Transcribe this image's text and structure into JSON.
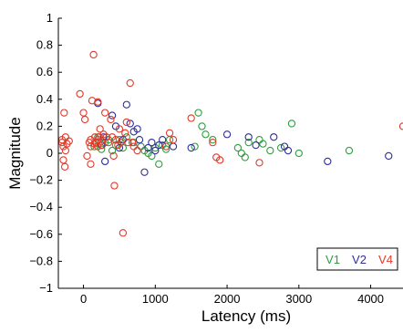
{
  "chart_data": {
    "type": "scatter",
    "title": "",
    "xlabel": "Latency (ms)",
    "ylabel": "Magnitude",
    "xlim": [
      -350,
      4450
    ],
    "ylim": [
      -1,
      1
    ],
    "xticks": [
      0,
      1000,
      2000,
      3000,
      4000
    ],
    "xtick_labels": [
      "0",
      "1000",
      "2000",
      "3000",
      "4000"
    ],
    "yticks": [
      -1,
      -0.8,
      -0.6,
      -0.4,
      -0.2,
      0,
      0.2,
      0.4,
      0.6,
      0.8,
      1
    ],
    "ytick_labels": [
      "−1",
      "−0.8",
      "−0.6",
      "−0.4",
      "−0.2",
      "0",
      "0.2",
      "0.4",
      "0.6",
      "0.8",
      "1"
    ],
    "grid": false,
    "legend_position": "bottom-right",
    "series": [
      {
        "name": "V1",
        "color": "#2e9e3e",
        "points": [
          [
            150,
            0.05
          ],
          [
            200,
            0.12
          ],
          [
            250,
            0.03
          ],
          [
            300,
            0.08
          ],
          [
            350,
            0.1
          ],
          [
            400,
            0.02
          ],
          [
            450,
            0.06
          ],
          [
            500,
            0.1
          ],
          [
            550,
            0.04
          ],
          [
            600,
            0.12
          ],
          [
            700,
            0.08
          ],
          [
            800,
            0.05
          ],
          [
            850,
            0.02
          ],
          [
            900,
            0.0
          ],
          [
            950,
            -0.02
          ],
          [
            1000,
            0.04
          ],
          [
            1050,
            -0.08
          ],
          [
            1100,
            0.06
          ],
          [
            1150,
            0.03
          ],
          [
            1200,
            0.1
          ],
          [
            1550,
            0.05
          ],
          [
            1600,
            0.3
          ],
          [
            1650,
            0.2
          ],
          [
            1700,
            0.14
          ],
          [
            1800,
            0.1
          ],
          [
            2150,
            0.04
          ],
          [
            2200,
            0.0
          ],
          [
            2250,
            -0.03
          ],
          [
            2300,
            0.08
          ],
          [
            2450,
            0.1
          ],
          [
            2500,
            0.07
          ],
          [
            2600,
            0.02
          ],
          [
            2750,
            0.04
          ],
          [
            2900,
            0.22
          ],
          [
            3000,
            0.0
          ],
          [
            3700,
            0.02
          ]
        ]
      },
      {
        "name": "V2",
        "color": "#2e2e9e",
        "points": [
          [
            200,
            0.37
          ],
          [
            250,
            0.06
          ],
          [
            280,
            0.12
          ],
          [
            300,
            -0.06
          ],
          [
            400,
            0.28
          ],
          [
            450,
            0.2
          ],
          [
            500,
            0.04
          ],
          [
            550,
            0.1
          ],
          [
            600,
            0.36
          ],
          [
            650,
            0.22
          ],
          [
            700,
            0.16
          ],
          [
            750,
            0.18
          ],
          [
            780,
            0.1
          ],
          [
            850,
            -0.14
          ],
          [
            900,
            0.04
          ],
          [
            950,
            0.08
          ],
          [
            1000,
            0.02
          ],
          [
            1050,
            0.06
          ],
          [
            1100,
            0.1
          ],
          [
            1250,
            0.05
          ],
          [
            1500,
            0.04
          ],
          [
            2000,
            0.14
          ],
          [
            2300,
            0.12
          ],
          [
            2400,
            0.06
          ],
          [
            2650,
            0.12
          ],
          [
            2800,
            0.05
          ],
          [
            2850,
            0.02
          ],
          [
            3400,
            -0.06
          ],
          [
            4250,
            -0.02
          ]
        ]
      },
      {
        "name": "V4",
        "color": "#e03a2a",
        "points": [
          [
            -300,
            0.1
          ],
          [
            -300,
            0.08
          ],
          [
            -280,
            0.05
          ],
          [
            -280,
            -0.05
          ],
          [
            -260,
            -0.1
          ],
          [
            -270,
            0.3
          ],
          [
            -250,
            0.12
          ],
          [
            -250,
            0.02
          ],
          [
            -230,
            0.07
          ],
          [
            -200,
            0.09
          ],
          [
            -50,
            0.44
          ],
          [
            0,
            0.3
          ],
          [
            20,
            0.25
          ],
          [
            50,
            -0.02
          ],
          [
            80,
            0.08
          ],
          [
            100,
            0.1
          ],
          [
            100,
            -0.08
          ],
          [
            100,
            0.05
          ],
          [
            120,
            0.39
          ],
          [
            140,
            0.73
          ],
          [
            150,
            0.07
          ],
          [
            160,
            0.12
          ],
          [
            180,
            0.08
          ],
          [
            200,
            0.38
          ],
          [
            200,
            0.05
          ],
          [
            200,
            0.1
          ],
          [
            220,
            0.12
          ],
          [
            230,
            0.18
          ],
          [
            250,
            0.09
          ],
          [
            260,
            0.06
          ],
          [
            280,
            0.14
          ],
          [
            300,
            0.3
          ],
          [
            320,
            0.12
          ],
          [
            350,
            0.08
          ],
          [
            380,
            0.25
          ],
          [
            400,
            0.12
          ],
          [
            420,
            -0.02
          ],
          [
            430,
            -0.24
          ],
          [
            450,
            0.1
          ],
          [
            480,
            0.06
          ],
          [
            500,
            0.18
          ],
          [
            520,
            0.08
          ],
          [
            550,
            -0.59
          ],
          [
            580,
            0.15
          ],
          [
            600,
            0.23
          ],
          [
            620,
            0.08
          ],
          [
            650,
            0.52
          ],
          [
            680,
            0.08
          ],
          [
            700,
            0.05
          ],
          [
            750,
            0.02
          ],
          [
            1150,
            0.05
          ],
          [
            1200,
            0.15
          ],
          [
            1250,
            0.1
          ],
          [
            1500,
            0.26
          ],
          [
            1800,
            0.08
          ],
          [
            1850,
            -0.03
          ],
          [
            1900,
            -0.05
          ],
          [
            2450,
            -0.07
          ],
          [
            4450,
            0.2
          ]
        ]
      }
    ]
  }
}
